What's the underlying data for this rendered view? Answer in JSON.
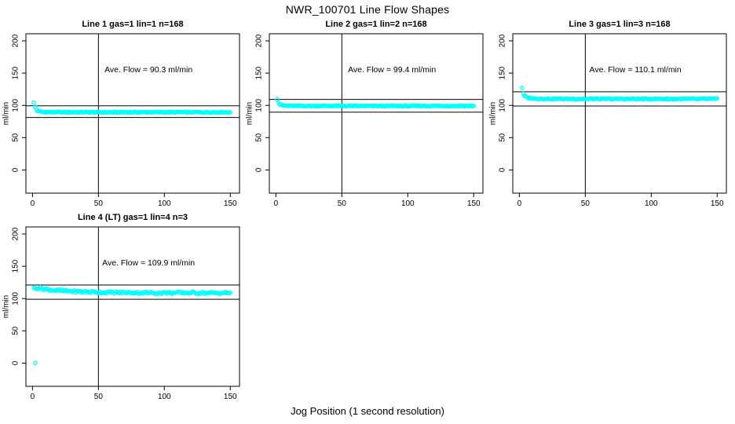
{
  "figure": {
    "title": "NWR_100701  Line Flow Shapes",
    "xlabel": "Jog Position (1 second resolution)",
    "background_color": "#ffffff",
    "point_color": "#00ffff",
    "line_color": "#000000",
    "marker": "open-circle"
  },
  "chart_data": [
    {
      "id": "line-1",
      "type": "scatter",
      "title": "Line 1 gas=1 lin=1 n=168",
      "annotation": "Ave. Flow =  90.3  ml/min",
      "ave_flow": 90.3,
      "ylabel": "ml/min",
      "x_ticks": [
        0,
        50,
        100,
        150
      ],
      "y_ticks": [
        0,
        50,
        100,
        150,
        200
      ],
      "xlim": [
        -5,
        157
      ],
      "ylim": [
        -36,
        211
      ],
      "ref_lines": {
        "horizontal": [
          99.3,
          81.3
        ],
        "vertical": [
          50
        ]
      },
      "series": {
        "x_start": 1,
        "x_end": 150,
        "x_step": 1,
        "profile": [
          [
            1,
            104
          ],
          [
            2,
            97.5
          ],
          [
            3,
            93.5
          ],
          [
            4,
            91.5
          ],
          [
            6,
            90.2
          ],
          [
            10,
            89.6
          ],
          [
            30,
            89.5
          ],
          [
            60,
            89.3
          ],
          [
            90,
            89.5
          ],
          [
            120,
            89.4
          ],
          [
            150,
            89.5
          ]
        ],
        "band_noise": 0.8,
        "outliers": []
      }
    },
    {
      "id": "line-2",
      "type": "scatter",
      "title": "Line 2 gas=1 lin=2 n=168",
      "annotation": "Ave. Flow =  99.4  ml/min",
      "ave_flow": 99.4,
      "ylabel": "ml/min",
      "x_ticks": [
        0,
        50,
        100,
        150
      ],
      "y_ticks": [
        0,
        50,
        100,
        150,
        200
      ],
      "xlim": [
        -5,
        157
      ],
      "ylim": [
        -36,
        211
      ],
      "ref_lines": {
        "horizontal": [
          109.3,
          89.5
        ],
        "vertical": [
          50
        ]
      },
      "series": {
        "x_start": 1,
        "x_end": 150,
        "x_step": 1,
        "profile": [
          [
            1,
            110
          ],
          [
            2,
            104.5
          ],
          [
            3,
            101.5
          ],
          [
            5,
            100
          ],
          [
            8,
            99.4
          ],
          [
            15,
            99.2
          ],
          [
            40,
            99.2
          ],
          [
            70,
            99.0
          ],
          [
            100,
            99.1
          ],
          [
            130,
            99.2
          ],
          [
            150,
            99.2
          ]
        ],
        "band_noise": 0.8,
        "outliers": []
      }
    },
    {
      "id": "line-3",
      "type": "scatter",
      "title": "Line 3 gas=1 lin=3 n=168",
      "annotation": "Ave. Flow =  110.1  ml/min",
      "ave_flow": 110.1,
      "ylabel": "ml/min",
      "x_ticks": [
        0,
        50,
        100,
        150
      ],
      "y_ticks": [
        0,
        50,
        100,
        150,
        200
      ],
      "xlim": [
        -5,
        157
      ],
      "ylim": [
        -36,
        211
      ],
      "ref_lines": {
        "horizontal": [
          121.1,
          99.1
        ],
        "vertical": [
          50
        ]
      },
      "series": {
        "x_start": 3,
        "x_end": 150,
        "x_step": 1,
        "profile": [
          [
            3,
            117.5
          ],
          [
            4,
            114.5
          ],
          [
            6,
            112
          ],
          [
            10,
            110.7
          ],
          [
            20,
            110.2
          ],
          [
            50,
            110
          ],
          [
            80,
            110.1
          ],
          [
            110,
            110
          ],
          [
            150,
            110
          ]
        ],
        "band_noise": 0.8,
        "outliers": [
          [
            2,
            127
          ]
        ]
      }
    },
    {
      "id": "line-4",
      "type": "scatter",
      "title": "Line 4 (LT) gas=1 lin=4 n=3",
      "annotation": "Ave. Flow =  109.9  ml/min",
      "ave_flow": 109.9,
      "ylabel": "ml/min",
      "x_ticks": [
        0,
        50,
        100,
        150
      ],
      "y_ticks": [
        0,
        50,
        100,
        150,
        200
      ],
      "xlim": [
        -5,
        157
      ],
      "ylim": [
        -36,
        211
      ],
      "ref_lines": {
        "horizontal": [
          120.9,
          98.9
        ],
        "vertical": [
          50
        ]
      },
      "series": {
        "x_start": 1,
        "x_end": 150,
        "x_step": 1,
        "profile": [
          [
            1,
            115.5
          ],
          [
            3,
            116.5
          ],
          [
            6,
            116
          ],
          [
            10,
            114.5
          ],
          [
            16,
            113
          ],
          [
            24,
            111.8
          ],
          [
            34,
            110.8
          ],
          [
            45,
            110
          ],
          [
            60,
            109.3
          ],
          [
            80,
            109
          ],
          [
            100,
            108.8
          ],
          [
            120,
            109
          ],
          [
            135,
            108.6
          ],
          [
            150,
            108.8
          ]
        ],
        "band_noise": 1.7,
        "outliers": [
          [
            2,
            0
          ]
        ]
      }
    }
  ]
}
